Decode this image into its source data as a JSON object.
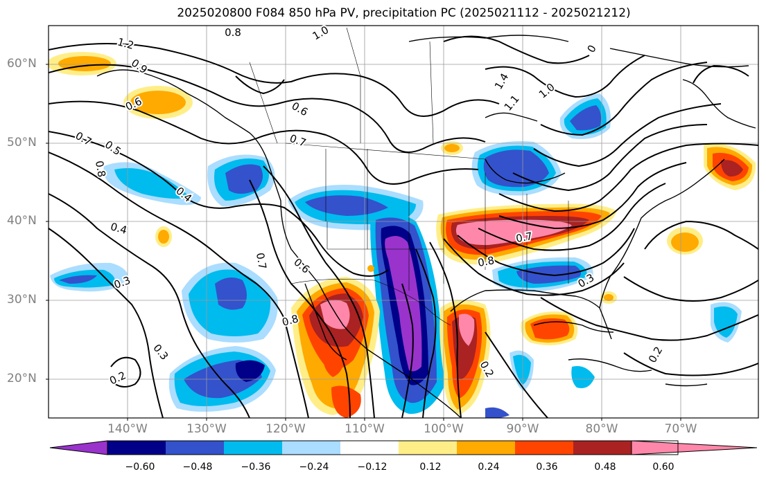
{
  "title": "2025020800 F084 850 hPa PV, precipitation PC (2025021112 - 2025021212)",
  "axes": {
    "lat_labels": [
      "60°N",
      "50°N",
      "40°N",
      "30°N",
      "20°N"
    ],
    "lon_labels": [
      "140°W",
      "130°W",
      "120°W",
      "110°W",
      "100°W",
      "90°W",
      "80°W",
      "70°W"
    ]
  },
  "contour_labels": [
    "0.8",
    "1.2",
    "1.0",
    "0.9",
    "0.6",
    "0.7",
    "0.5",
    "0.7",
    "0.6",
    "0.8",
    "0.4",
    "0.4",
    "0.3",
    "0.3",
    "0.2",
    "0.7",
    "0.6",
    "0.8",
    "0.7",
    "0.8",
    "0.3",
    "0.2",
    "0.2",
    "1.4",
    "1.0",
    "1.1",
    "0"
  ],
  "colorbar": {
    "ticks": [
      "−0.60",
      "−0.48",
      "−0.36",
      "−0.24",
      "−0.12",
      "0.12",
      "0.24",
      "0.36",
      "0.48",
      "0.60"
    ],
    "colors": [
      "#9933cc",
      "#000088",
      "#3352cc",
      "#00bbee",
      "#aaddff",
      "#ffffff",
      "#ffee88",
      "#ffaa00",
      "#ff4400",
      "#aa2222",
      "#ff88aa"
    ]
  },
  "legend": {
    "bins": [
      {
        "range": "< -0.60",
        "color": "#9933cc"
      },
      {
        "range": "-0.60 to -0.48",
        "color": "#000088"
      },
      {
        "range": "-0.48 to -0.36",
        "color": "#3352cc"
      },
      {
        "range": "-0.36 to -0.24",
        "color": "#00bbee"
      },
      {
        "range": "-0.24 to -0.12",
        "color": "#aaddff"
      },
      {
        "range": "-0.12 to 0.12",
        "color": "#ffffff"
      },
      {
        "range": "0.12 to 0.24",
        "color": "#ffee88"
      },
      {
        "range": "0.24 to 0.36",
        "color": "#ffaa00"
      },
      {
        "range": "0.36 to 0.48",
        "color": "#ff4400"
      },
      {
        "range": "0.48 to 0.60",
        "color": "#aa2222"
      },
      {
        "range": "> 0.60",
        "color": "#ff88aa"
      }
    ]
  }
}
